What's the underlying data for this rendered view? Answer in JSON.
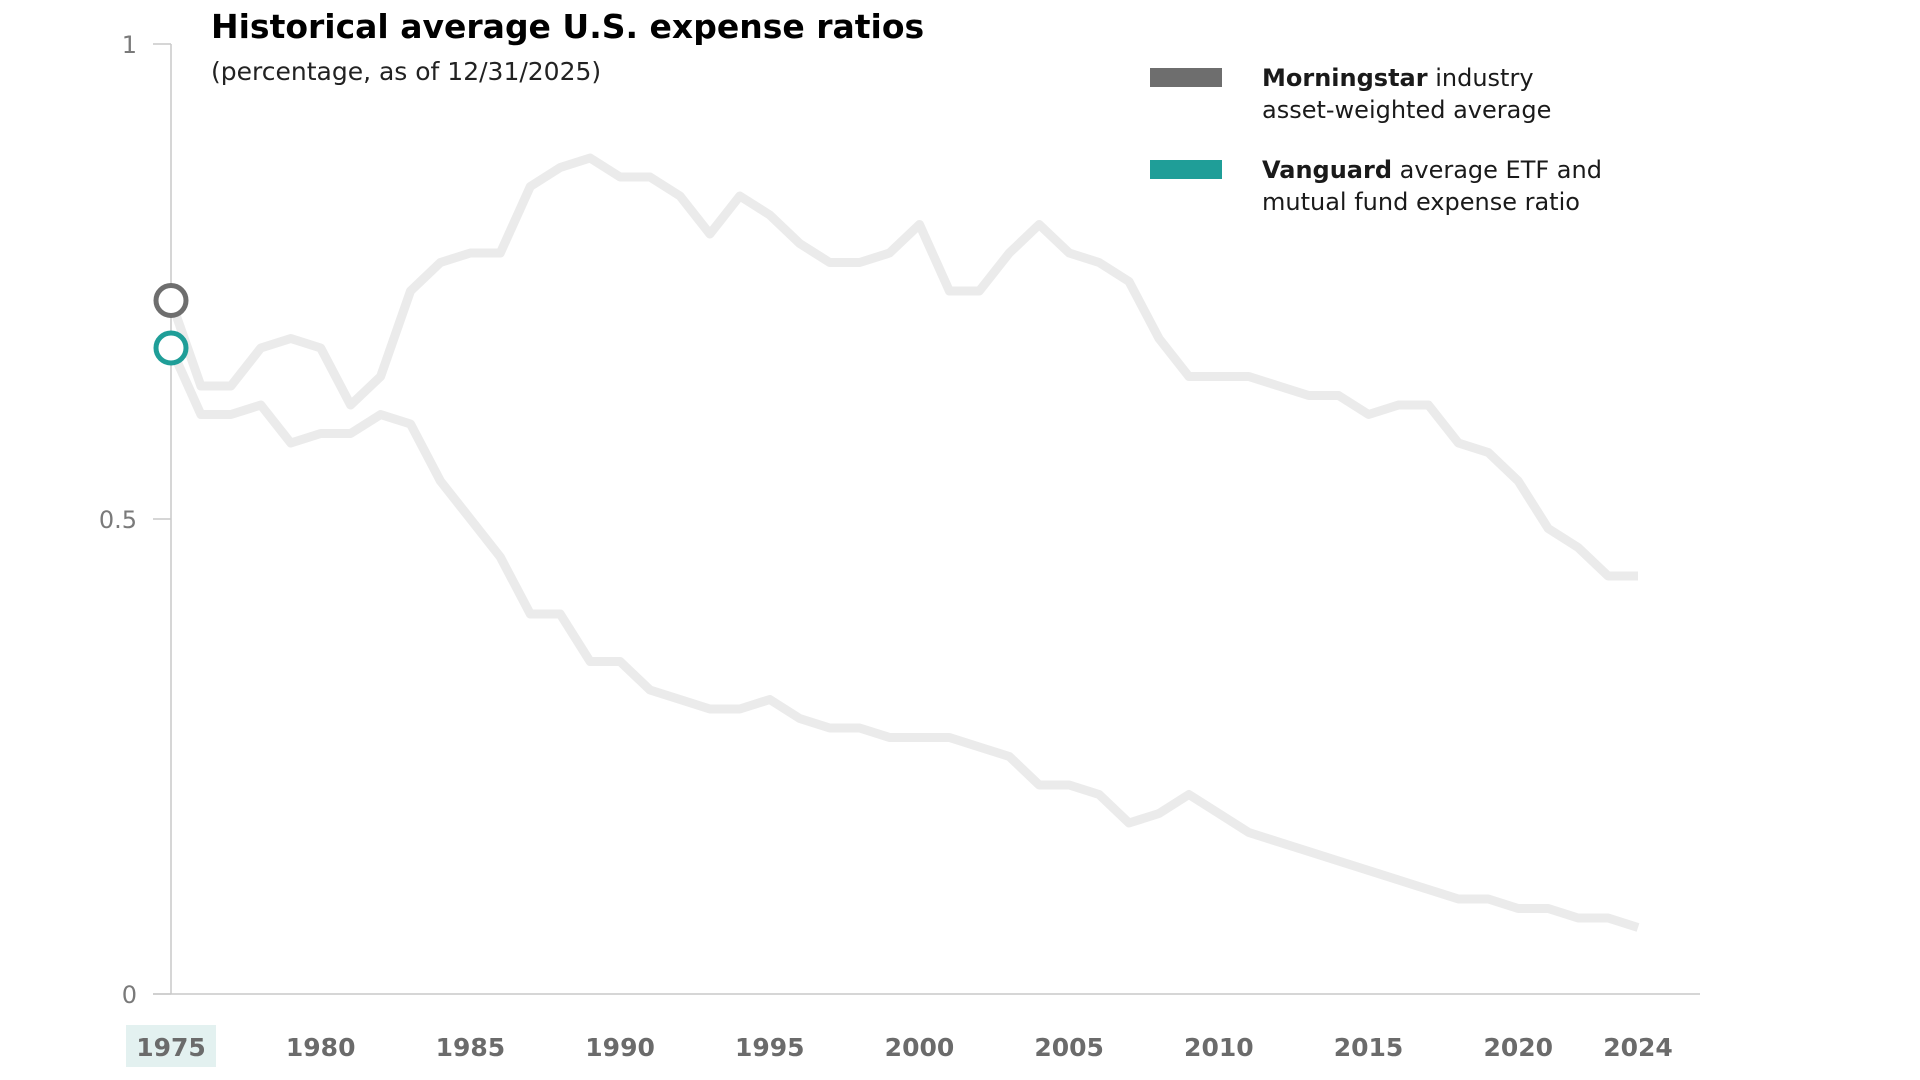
{
  "chart_data": {
    "type": "line",
    "title": "Historical average U.S. expense ratios",
    "subtitle": "(percentage, as of 12/31/2025)",
    "xlabel": "",
    "ylabel": "",
    "xlim": [
      1975,
      2024
    ],
    "ylim": [
      0,
      1
    ],
    "y_ticks": [
      0,
      0.5,
      1
    ],
    "y_tick_labels": [
      "0",
      "0.5",
      "1"
    ],
    "x_ticks": [
      1975,
      1980,
      1985,
      1990,
      1995,
      2000,
      2005,
      2010,
      2015,
      2020,
      2024
    ],
    "x_tick_labels": [
      "1975",
      "1980",
      "1985",
      "1990",
      "1995",
      "2000",
      "2005",
      "2010",
      "2015",
      "2020",
      "2024"
    ],
    "highlighted_x": 1975,
    "grid": false,
    "legend_position": "top-right",
    "x": [
      1975,
      1976,
      1977,
      1978,
      1979,
      1980,
      1981,
      1982,
      1983,
      1984,
      1985,
      1986,
      1987,
      1988,
      1989,
      1990,
      1991,
      1992,
      1993,
      1994,
      1995,
      1996,
      1997,
      1998,
      1999,
      2000,
      2001,
      2002,
      2003,
      2004,
      2005,
      2006,
      2007,
      2008,
      2009,
      2010,
      2011,
      2012,
      2013,
      2014,
      2015,
      2016,
      2017,
      2018,
      2019,
      2020,
      2021,
      2022,
      2023,
      2024
    ],
    "series": [
      {
        "name": "Morningstar industry asset-weighted average",
        "name_bold": "Morningstar",
        "name_rest": " industry",
        "name_line2": "asset-weighted average",
        "color": "#6e6e6e",
        "values": [
          0.73,
          0.64,
          0.64,
          0.68,
          0.69,
          0.68,
          0.62,
          0.65,
          0.74,
          0.77,
          0.78,
          0.78,
          0.85,
          0.87,
          0.88,
          0.86,
          0.86,
          0.84,
          0.8,
          0.84,
          0.82,
          0.79,
          0.77,
          0.77,
          0.78,
          0.81,
          0.74,
          0.74,
          0.78,
          0.81,
          0.78,
          0.77,
          0.75,
          0.69,
          0.65,
          0.65,
          0.65,
          0.64,
          0.63,
          0.63,
          0.61,
          0.62,
          0.62,
          0.58,
          0.57,
          0.54,
          0.49,
          0.47,
          0.44,
          0.44
        ]
      },
      {
        "name": "Vanguard average ETF and mutual fund expense ratio",
        "name_bold": "Vanguard",
        "name_rest": " average ETF and",
        "name_line2": "mutual fund expense ratio",
        "color": "#1f9e98",
        "values": [
          0.68,
          0.61,
          0.61,
          0.62,
          0.58,
          0.59,
          0.59,
          0.61,
          0.6,
          0.54,
          0.5,
          0.46,
          0.4,
          0.4,
          0.35,
          0.35,
          0.32,
          0.31,
          0.3,
          0.3,
          0.31,
          0.29,
          0.28,
          0.28,
          0.27,
          0.27,
          0.27,
          0.26,
          0.25,
          0.22,
          0.22,
          0.21,
          0.18,
          0.19,
          0.21,
          0.19,
          0.17,
          0.16,
          0.15,
          0.14,
          0.13,
          0.12,
          0.11,
          0.1,
          0.1,
          0.09,
          0.09,
          0.08,
          0.08,
          0.07
        ]
      }
    ]
  }
}
